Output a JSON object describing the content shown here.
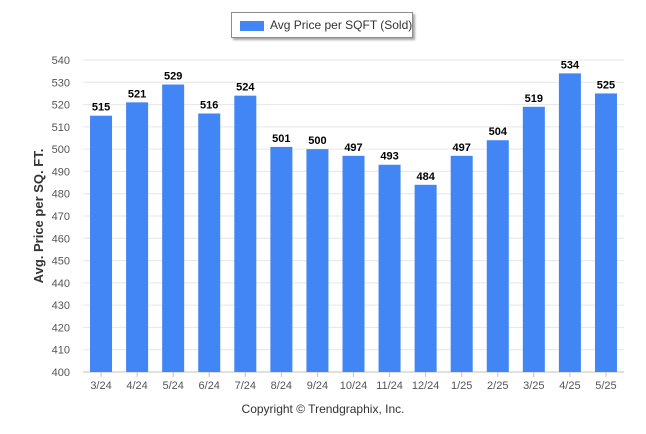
{
  "legend": {
    "label": "Avg Price per SQFT (Sold)"
  },
  "footer": {
    "copyright": "Copyright © Trendgraphix, Inc."
  },
  "colors": {
    "bar": "#4285f4",
    "grid": "#e6e6e6",
    "axis_text": "#555555",
    "label_text": "#000000"
  },
  "chart_data": {
    "type": "bar",
    "categories": [
      "3/24",
      "4/24",
      "5/24",
      "6/24",
      "7/24",
      "8/24",
      "9/24",
      "10/24",
      "11/24",
      "12/24",
      "1/25",
      "2/25",
      "3/25",
      "4/25",
      "5/25"
    ],
    "series": [
      {
        "name": "Avg Price per SQFT (Sold)",
        "values": [
          515,
          521,
          529,
          516,
          524,
          501,
          500,
          497,
          493,
          484,
          497,
          504,
          519,
          534,
          525
        ]
      }
    ],
    "ylabel": "Avg. Price per SQ. FT.",
    "xlabel": "",
    "ylim": [
      400,
      540
    ],
    "yticks": [
      400,
      410,
      420,
      430,
      440,
      450,
      460,
      470,
      480,
      490,
      500,
      510,
      520,
      530,
      540
    ],
    "grid": true,
    "legend_position": "top-center"
  }
}
